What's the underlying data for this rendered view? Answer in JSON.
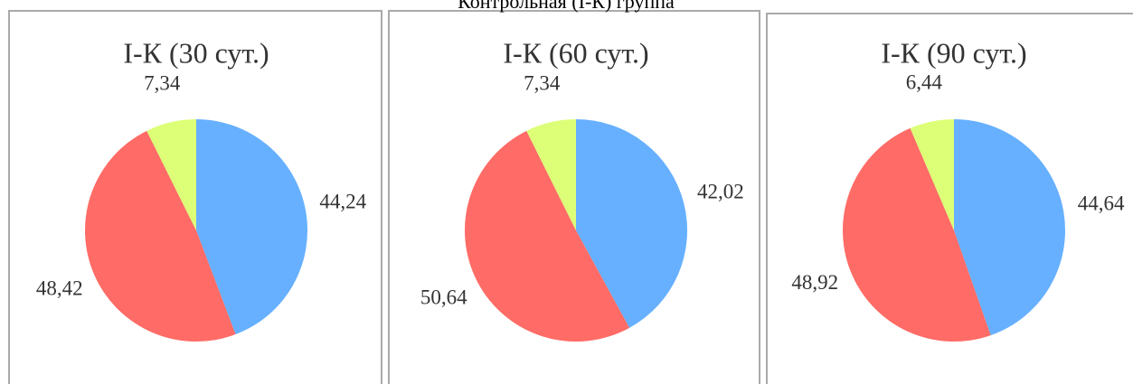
{
  "header": {
    "title": "Контрольная (I-К) группа"
  },
  "chart_data": [
    {
      "type": "pie",
      "title": "I-К (30 сут.)",
      "values": [
        44.24,
        48.42,
        7.34
      ],
      "value_labels": [
        "44,24",
        "48,42",
        "7,34"
      ],
      "colors": [
        "#66b0ff",
        "#ff6b66",
        "#ddff77"
      ]
    },
    {
      "type": "pie",
      "title": "I-К (60 сут.)",
      "values": [
        42.02,
        50.64,
        7.34
      ],
      "value_labels": [
        "42,02",
        "50,64",
        "7,34"
      ],
      "colors": [
        "#66b0ff",
        "#ff6b66",
        "#ddff77"
      ]
    },
    {
      "type": "pie",
      "title": "I-К (90 сут.)",
      "values": [
        44.64,
        48.92,
        6.44
      ],
      "value_labels": [
        "44,64",
        "48,92",
        "6,44"
      ],
      "colors": [
        "#66b0ff",
        "#ff6b66",
        "#ddff77"
      ]
    }
  ]
}
